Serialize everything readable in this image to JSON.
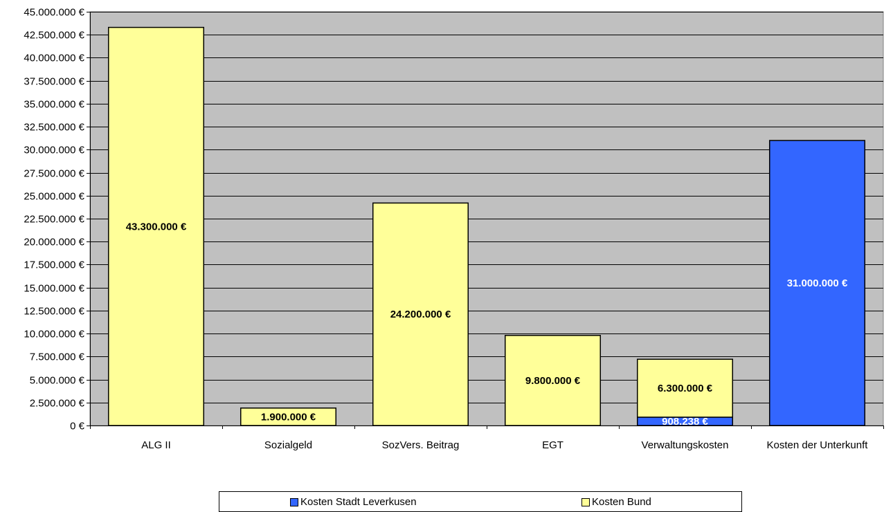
{
  "chart_data": {
    "type": "bar",
    "stacked": true,
    "categories": [
      "ALG II",
      "Sozialgeld",
      "SozVers. Beitrag",
      "EGT",
      "Verwaltungskosten",
      "Kosten der Unterkunft"
    ],
    "series": [
      {
        "name": "Kosten Stadt Leverkusen",
        "color": "#3366ff",
        "label_color": "#ffffff",
        "values": [
          0,
          0,
          0,
          0,
          908238,
          31000000
        ],
        "data_labels": [
          "",
          "",
          "",
          "",
          "908.238 €",
          "31.000.000 €"
        ]
      },
      {
        "name": "Kosten Bund",
        "color": "#ffff99",
        "label_color": "#000000",
        "values": [
          43300000,
          1900000,
          24200000,
          9800000,
          6300000,
          0
        ],
        "data_labels": [
          "43.300.000 €",
          "1.900.000 €",
          "24.200.000 €",
          "9.800.000 €",
          "6.300.000 €",
          ""
        ]
      }
    ],
    "ylim": [
      0,
      45000000
    ],
    "yticks": [
      0,
      2500000,
      5000000,
      7500000,
      10000000,
      12500000,
      15000000,
      17500000,
      20000000,
      22500000,
      25000000,
      27500000,
      30000000,
      32500000,
      35000000,
      37500000,
      40000000,
      42500000,
      45000000
    ],
    "ytick_labels": [
      "0 €",
      "2.500.000 €",
      "5.000.000 €",
      "7.500.000 €",
      "10.000.000 €",
      "12.500.000 €",
      "15.000.000 €",
      "17.500.000 €",
      "20.000.000 €",
      "22.500.000 €",
      "25.000.000 €",
      "27.500.000 €",
      "30.000.000 €",
      "32.500.000 €",
      "35.000.000 €",
      "37.500.000 €",
      "40.000.000 €",
      "42.500.000 €",
      "45.000.000 €"
    ],
    "plot_background": "#c0c0c0",
    "grid": true,
    "legend_position": "bottom"
  },
  "legend": {
    "items": [
      {
        "label": "Kosten Stadt Leverkusen",
        "color": "#3366ff"
      },
      {
        "label": "Kosten Bund",
        "color": "#ffff99"
      }
    ]
  }
}
